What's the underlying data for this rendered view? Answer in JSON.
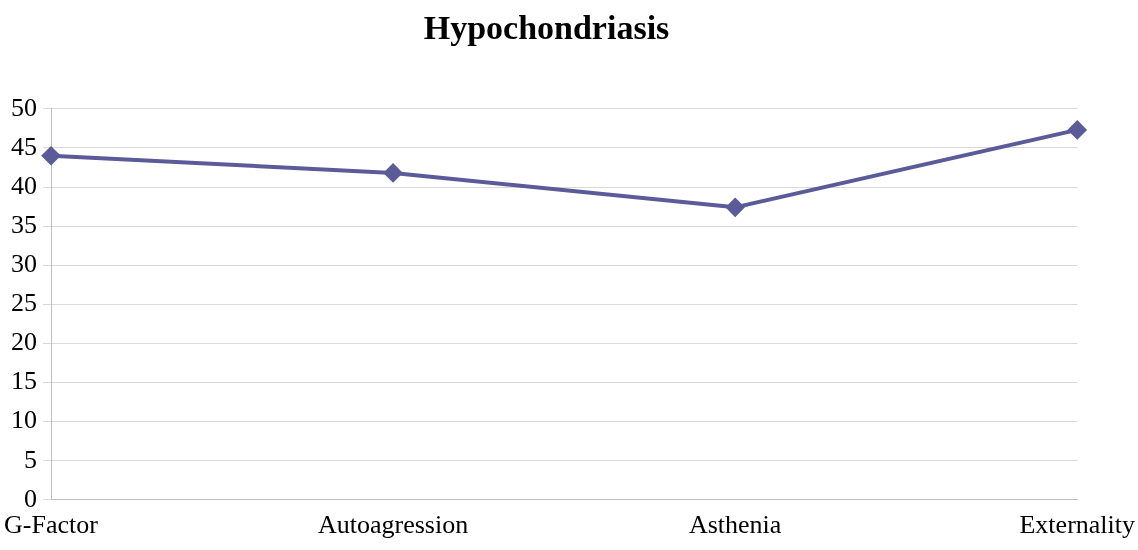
{
  "chart_data": {
    "type": "line",
    "title": "Hypochondriasis",
    "categories": [
      "G-Factor",
      "Autoagression",
      "Asthenia",
      "Externality"
    ],
    "series": [
      {
        "color": "#5b5b9a",
        "values": [
          44,
          41.8,
          37.4,
          47.3
        ]
      }
    ],
    "ylim": [
      0,
      50
    ],
    "yticks": [
      0,
      5,
      10,
      15,
      20,
      25,
      30,
      35,
      40,
      45,
      50
    ],
    "grid": "y",
    "legend": false,
    "marker": "diamond",
    "line_style": "solid"
  }
}
